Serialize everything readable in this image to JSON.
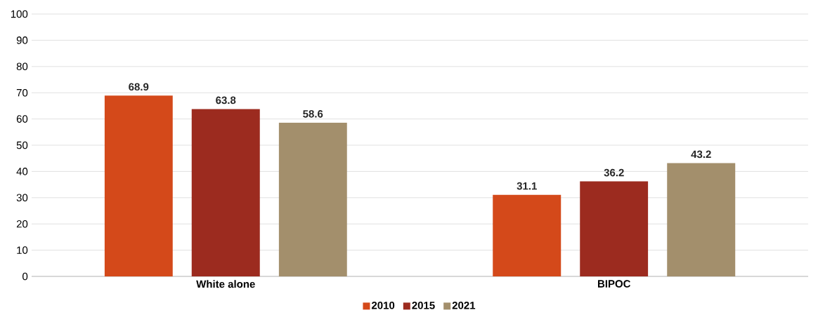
{
  "chart_data": {
    "type": "bar",
    "categories": [
      "White alone",
      "BIPOC"
    ],
    "series": [
      {
        "name": "2010",
        "color": "#d4491a",
        "values": [
          68.9,
          31.1
        ]
      },
      {
        "name": "2015",
        "color": "#9c2b1f",
        "values": [
          63.8,
          36.2
        ]
      },
      {
        "name": "2021",
        "color": "#a38f6c",
        "values": [
          58.6,
          43.2
        ]
      }
    ],
    "ylim": [
      0,
      100
    ],
    "yticks": [
      0,
      10,
      20,
      30,
      40,
      50,
      60,
      70,
      80,
      90,
      100
    ],
    "grid": "y",
    "legend": "bottom",
    "data_labels": true
  }
}
